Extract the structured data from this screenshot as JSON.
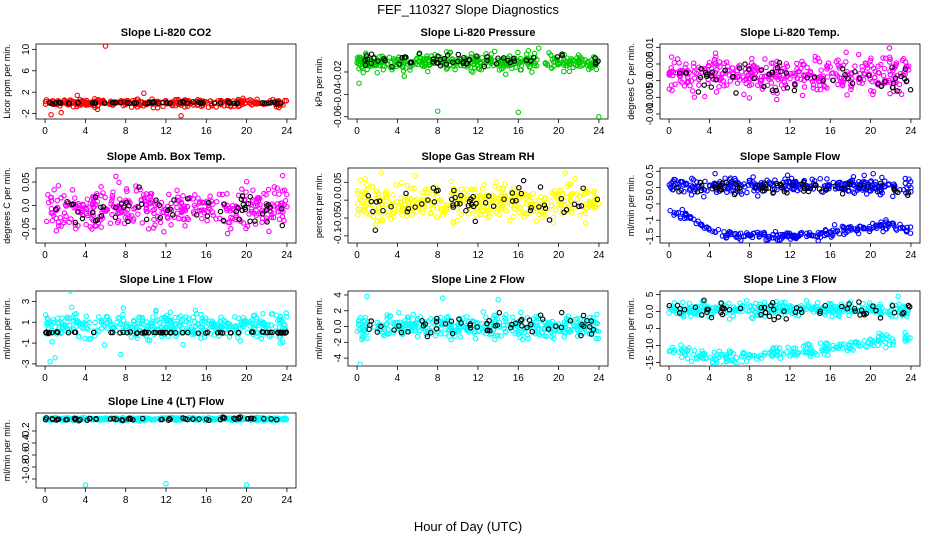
{
  "suptitle": "FEF_110327  Slope Diagnostics",
  "xlabel": "Hour of Day (UTC)",
  "colors": {
    "black": "#000000",
    "red": "#ff0000",
    "green": "#00cc00",
    "magenta": "#ff00ff",
    "yellow": "#ffff00",
    "blue": "#0000ff",
    "cyan": "#00ffff"
  },
  "chart_data": [
    {
      "type": "scatter",
      "title": "Slope Li-820 CO2",
      "ylabel": "Licor ppm per min.",
      "xticks": [
        0,
        4,
        8,
        12,
        16,
        20,
        24
      ],
      "yticks": [
        -2,
        2,
        6,
        10
      ],
      "ylim": [
        -3,
        11
      ],
      "series": [
        {
          "color": "red",
          "pattern": "band",
          "center": 0,
          "spread": 0.6,
          "n": 300,
          "outliers": [
            [
              6,
              10.6
            ],
            [
              0.6,
              -2.2
            ],
            [
              1.6,
              -1.8
            ],
            [
              5.2,
              -1.2
            ],
            [
              9.8,
              1.8
            ],
            [
              13.5,
              -2.4
            ],
            [
              3.2,
              1.4
            ]
          ]
        },
        {
          "color": "black",
          "pattern": "band",
          "center": 0,
          "spread": 0.15,
          "n": 60
        }
      ]
    },
    {
      "type": "scatter",
      "title": "Slope Li-820 Pressure",
      "ylabel": "kPa per min.",
      "xticks": [
        0,
        4,
        8,
        12,
        16,
        20,
        24
      ],
      "yticks": [
        -0.06,
        -0.04,
        -0.02
      ],
      "ylim": [
        -0.062,
        0.005
      ],
      "series": [
        {
          "color": "green",
          "pattern": "band",
          "center": -0.011,
          "spread": 0.007,
          "n": 380,
          "outliers": [
            [
              8,
              -0.055
            ],
            [
              16,
              -0.056
            ],
            [
              24,
              -0.06
            ],
            [
              0.2,
              -0.03
            ]
          ]
        },
        {
          "color": "black",
          "pattern": "band",
          "center": -0.009,
          "spread": 0.005,
          "n": 60
        }
      ]
    },
    {
      "type": "scatter",
      "title": "Slope Li-820 Temp.",
      "ylabel": "degrees C per min.",
      "xticks": [
        0,
        4,
        8,
        12,
        16,
        20,
        24
      ],
      "yticks": [
        -0.01,
        -0.005,
        0.0,
        0.005,
        0.01
      ],
      "ylim": [
        -0.0115,
        0.011
      ],
      "series": [
        {
          "color": "magenta",
          "pattern": "band",
          "center": 0.0015,
          "spread": 0.0045,
          "n": 380
        },
        {
          "color": "black",
          "pattern": "band",
          "center": 0.001,
          "spread": 0.004,
          "n": 60
        }
      ]
    },
    {
      "type": "scatter",
      "title": "Slope Amb. Box Temp.",
      "ylabel": "degrees C per min.",
      "xticks": [
        0,
        4,
        8,
        12,
        16,
        20,
        24
      ],
      "yticks": [
        -0.05,
        0.0,
        0.05
      ],
      "ylim": [
        -0.08,
        0.08
      ],
      "series": [
        {
          "color": "magenta",
          "pattern": "band",
          "center": -0.005,
          "spread": 0.035,
          "n": 380
        },
        {
          "color": "black",
          "pattern": "band",
          "center": -0.005,
          "spread": 0.03,
          "n": 60
        }
      ]
    },
    {
      "type": "scatter",
      "title": "Slope Gas Stream RH",
      "ylabel": "percent per min.",
      "xticks": [
        0,
        4,
        8,
        12,
        16,
        20,
        24
      ],
      "yticks": [
        -0.1,
        -0.05,
        0.0,
        0.05
      ],
      "ylim": [
        -0.12,
        0.09
      ],
      "series": [
        {
          "color": "yellow",
          "pattern": "band",
          "center": -0.005,
          "spread": 0.045,
          "n": 380
        },
        {
          "color": "black",
          "pattern": "band",
          "center": -0.005,
          "spread": 0.035,
          "n": 60
        }
      ]
    },
    {
      "type": "scatter",
      "title": "Slope Sample Flow",
      "ylabel": "ml/min per min.",
      "xticks": [
        0,
        4,
        8,
        12,
        16,
        20,
        24
      ],
      "yticks": [
        -1.5,
        -1.0,
        -0.5,
        0.0,
        0.5
      ],
      "ylim": [
        -1.7,
        0.6
      ],
      "series": [
        {
          "color": "blue",
          "pattern": "band",
          "center": 0.05,
          "spread": 0.2,
          "n": 300
        },
        {
          "color": "blue",
          "pattern": "curve",
          "center": -1.35,
          "spread": 0.12,
          "n": 220,
          "curve": [
            [
              0,
              -0.75
            ],
            [
              2,
              -0.9
            ],
            [
              4,
              -1.3
            ],
            [
              6,
              -1.45
            ],
            [
              10,
              -1.5
            ],
            [
              14,
              -1.45
            ],
            [
              18,
              -1.3
            ],
            [
              22,
              -1.15
            ],
            [
              24,
              -1.25
            ]
          ]
        },
        {
          "color": "black",
          "pattern": "band",
          "center": 0.0,
          "spread": 0.15,
          "n": 60
        }
      ]
    },
    {
      "type": "scatter",
      "title": "Slope Line 1 Flow",
      "ylabel": "ml/min per min.",
      "xticks": [
        0,
        4,
        8,
        12,
        16,
        20,
        24
      ],
      "yticks": [
        -3,
        -1,
        1,
        3
      ],
      "ylim": [
        -3.2,
        4
      ],
      "series": [
        {
          "color": "cyan",
          "pattern": "band",
          "center": 0.6,
          "spread": 1.1,
          "n": 380,
          "outliers": [
            [
              2.5,
              4.0
            ],
            [
              0.5,
              -2.8
            ],
            [
              1.0,
              -2.4
            ],
            [
              7.5,
              -2.1
            ]
          ]
        },
        {
          "color": "black",
          "pattern": "band",
          "center": 0.0,
          "spread": 0.05,
          "n": 70
        }
      ]
    },
    {
      "type": "scatter",
      "title": "Slope Line 2 Flow",
      "ylabel": "ml/min per min.",
      "xticks": [
        0,
        4,
        8,
        12,
        16,
        20,
        24
      ],
      "yticks": [
        -4,
        -2,
        0,
        2,
        4
      ],
      "ylim": [
        -5,
        4.5
      ],
      "series": [
        {
          "color": "cyan",
          "pattern": "band",
          "center": 0.0,
          "spread": 1.2,
          "n": 380,
          "outliers": [
            [
              0.3,
              -4.8
            ],
            [
              1,
              3.8
            ],
            [
              8.5,
              3.6
            ],
            [
              14,
              3.4
            ]
          ]
        },
        {
          "color": "black",
          "pattern": "band",
          "center": 0.0,
          "spread": 1.0,
          "n": 60
        }
      ]
    },
    {
      "type": "scatter",
      "title": "Slope Line 3 Flow",
      "ylabel": "ml/min per min.",
      "xticks": [
        0,
        4,
        8,
        12,
        16,
        20,
        24
      ],
      "yticks": [
        -15,
        -10,
        -5,
        0,
        5
      ],
      "ylim": [
        -16,
        6
      ],
      "series": [
        {
          "color": "cyan",
          "pattern": "band",
          "center": 0.5,
          "spread": 1.8,
          "n": 300
        },
        {
          "color": "cyan",
          "pattern": "curve",
          "center": -12,
          "spread": 1.5,
          "n": 220,
          "curve": [
            [
              0,
              -11
            ],
            [
              2,
              -12.5
            ],
            [
              4,
              -14
            ],
            [
              8,
              -13
            ],
            [
              12,
              -12
            ],
            [
              16,
              -11
            ],
            [
              20,
              -9
            ],
            [
              24,
              -7
            ]
          ]
        },
        {
          "color": "black",
          "pattern": "band",
          "center": 0.5,
          "spread": 1.8,
          "n": 60
        }
      ]
    },
    {
      "type": "scatter",
      "title": "Slope Line 4 (LT) Flow",
      "ylabel": "ml/min per min.",
      "xticks": [
        0,
        4,
        8,
        12,
        16,
        20,
        24
      ],
      "yticks": [
        -1.0,
        -0.8,
        -0.6,
        -0.4,
        -0.2
      ],
      "ylim": [
        -1.15,
        0.1
      ],
      "series": [
        {
          "color": "cyan",
          "pattern": "band",
          "center": 0.0,
          "spread": 0.02,
          "n": 380,
          "outliers": [
            [
              4,
              -1.1
            ],
            [
              12,
              -1.08
            ],
            [
              20,
              -1.1
            ]
          ]
        },
        {
          "color": "black",
          "pattern": "band",
          "center": 0.0,
          "spread": 0.02,
          "n": 60
        }
      ]
    }
  ]
}
